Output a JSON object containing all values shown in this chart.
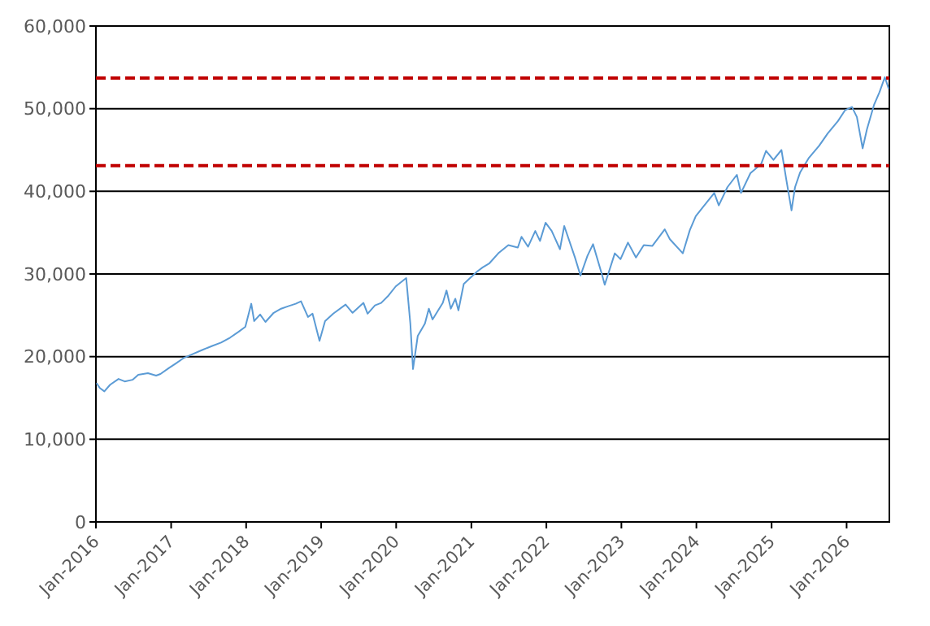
{
  "chart_data": {
    "type": "line",
    "x": [
      "2016-01-04",
      "2016-01-20",
      "2016-02-11",
      "2016-03-10",
      "2016-04-20",
      "2016-05-20",
      "2016-06-27",
      "2016-07-25",
      "2016-09-10",
      "2016-10-20",
      "2016-11-10",
      "2016-12-20",
      "2017-01-25",
      "2017-03-01",
      "2017-04-15",
      "2017-06-01",
      "2017-07-20",
      "2017-09-01",
      "2017-10-15",
      "2017-11-25",
      "2017-12-28",
      "2018-01-26",
      "2018-02-09",
      "2018-03-10",
      "2018-04-05",
      "2018-05-15",
      "2018-06-20",
      "2018-07-25",
      "2018-08-30",
      "2018-09-25",
      "2018-10-29",
      "2018-11-20",
      "2018-12-24",
      "2019-01-20",
      "2019-03-01",
      "2019-04-30",
      "2019-06-03",
      "2019-07-26",
      "2019-08-15",
      "2019-09-20",
      "2019-10-20",
      "2019-11-25",
      "2019-12-30",
      "2020-02-19",
      "2020-03-10",
      "2020-03-23",
      "2020-04-15",
      "2020-05-20",
      "2020-06-08",
      "2020-06-26",
      "2020-08-15",
      "2020-09-02",
      "2020-09-23",
      "2020-10-15",
      "2020-10-30",
      "2020-11-25",
      "2020-12-30",
      "2021-01-29",
      "2021-02-25",
      "2021-03-30",
      "2021-05-12",
      "2021-06-30",
      "2021-08-15",
      "2021-09-02",
      "2021-10-04",
      "2021-11-08",
      "2021-12-01",
      "2021-12-28",
      "2022-01-27",
      "2022-03-08",
      "2022-03-29",
      "2022-05-20",
      "2022-06-16",
      "2022-07-20",
      "2022-08-16",
      "2022-09-30",
      "2022-10-12",
      "2022-11-30",
      "2022-12-28",
      "2023-02-02",
      "2023-03-13",
      "2023-04-20",
      "2023-06-01",
      "2023-07-31",
      "2023-08-25",
      "2023-10-27",
      "2023-11-30",
      "2023-12-29",
      "2024-02-15",
      "2024-03-28",
      "2024-04-19",
      "2024-05-31",
      "2024-07-16",
      "2024-08-05",
      "2024-09-20",
      "2024-11-11",
      "2024-12-05",
      "2025-01-10",
      "2025-02-18",
      "2025-03-13",
      "2025-04-08",
      "2025-04-25",
      "2025-05-20",
      "2025-06-30",
      "2025-08-20",
      "2025-10-01",
      "2025-11-20",
      "2025-12-24",
      "2026-01-27",
      "2026-02-20",
      "2026-03-20",
      "2026-04-10",
      "2026-05-15",
      "2026-06-10",
      "2026-07-06",
      "2026-07-25"
    ],
    "series": [
      {
        "color": "#5b9bd5",
        "values": [
          16800,
          16200,
          15800,
          16600,
          17300,
          17000,
          17200,
          17800,
          18000,
          17700,
          17900,
          18600,
          19200,
          19800,
          20300,
          20800,
          21300,
          21700,
          22300,
          23000,
          23600,
          26400,
          24300,
          25100,
          24200,
          25300,
          25800,
          26100,
          26400,
          26700,
          24800,
          25200,
          21900,
          24300,
          25200,
          26300,
          25300,
          26500,
          25200,
          26200,
          26500,
          27400,
          28500,
          29500,
          24000,
          18500,
          22500,
          24000,
          25800,
          24500,
          26500,
          28000,
          25800,
          27000,
          25600,
          28800,
          29600,
          30300,
          30800,
          31300,
          32500,
          33500,
          33200,
          34500,
          33300,
          35200,
          34000,
          36200,
          35200,
          33000,
          35800,
          32000,
          29800,
          32200,
          33600,
          29800,
          28700,
          32500,
          31800,
          33800,
          32000,
          33500,
          33400,
          35400,
          34200,
          32500,
          35300,
          37000,
          38500,
          39800,
          38300,
          40500,
          42000,
          39800,
          42200,
          43300,
          44900,
          43800,
          45000,
          41500,
          37700,
          40500,
          42300,
          44000,
          45500,
          47000,
          48500,
          49800,
          50200,
          49000,
          45200,
          47500,
          50500,
          52000,
          53800,
          52400
        ]
      }
    ],
    "xlim": [
      "2016-01-01",
      "2026-07-28"
    ],
    "xticks": [
      {
        "value": "2016-01-01",
        "label": "Jan-2016"
      },
      {
        "value": "2017-01-01",
        "label": "Jan-2017"
      },
      {
        "value": "2018-01-01",
        "label": "Jan-2018"
      },
      {
        "value": "2019-01-01",
        "label": "Jan-2019"
      },
      {
        "value": "2020-01-01",
        "label": "Jan-2020"
      },
      {
        "value": "2021-01-01",
        "label": "Jan-2021"
      },
      {
        "value": "2022-01-01",
        "label": "Jan-2022"
      },
      {
        "value": "2023-01-01",
        "label": "Jan-2023"
      },
      {
        "value": "2024-01-01",
        "label": "Jan-2024"
      },
      {
        "value": "2025-01-01",
        "label": "Jan-2025"
      },
      {
        "value": "2026-01-01",
        "label": "Jan-2026"
      }
    ],
    "ylim": [
      0,
      60000
    ],
    "yticks": [
      0,
      {
        "value": 10000,
        "label": "10,000"
      },
      {
        "value": 20000,
        "label": "20,000"
      },
      {
        "value": 30000,
        "label": "30,000"
      },
      {
        "value": 40000,
        "label": "40,000"
      },
      {
        "value": 50000,
        "label": "50,000"
      },
      {
        "value": 60000,
        "label": "60,000"
      }
    ],
    "grid": "y",
    "line_style": "solid",
    "ref_lines": [
      {
        "axis": "y",
        "value": 53700,
        "color": "#c00000",
        "line_style": "dashed"
      },
      {
        "axis": "y",
        "value": 43100,
        "color": "#c00000",
        "line_style": "dashed"
      }
    ]
  }
}
